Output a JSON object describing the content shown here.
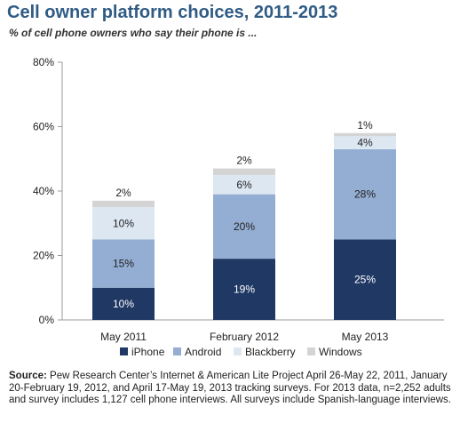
{
  "title": "Cell owner platform choices, 2011-2013",
  "subtitle": "% of cell phone owners who say their phone is ...",
  "source": {
    "label": "Source:",
    "text": "Pew Research Center’s Internet & American Lite Project April 26-May 22, 2011, January 20-February 19, 2012, and April 17-May 19, 2013 tracking surveys. For 2013 data, n=2,252 adults and survey includes 1,127 cell phone interviews. All surveys include Spanish-language interviews."
  },
  "chart_data": {
    "type": "bar",
    "stacked": true,
    "categories": [
      "May 2011",
      "February 2012",
      "May 2013"
    ],
    "series": [
      {
        "name": "iPhone",
        "values": [
          10,
          19,
          25
        ],
        "color": "#1f3864",
        "label_color": "#ffffff"
      },
      {
        "name": "Android",
        "values": [
          15,
          20,
          28
        ],
        "color": "#93aed2",
        "label_color": "#222222"
      },
      {
        "name": "Blackberry",
        "values": [
          10,
          6,
          4
        ],
        "color": "#dde7f2",
        "label_color": "#222222"
      },
      {
        "name": "Windows",
        "values": [
          2,
          2,
          1
        ],
        "color": "#d4d4d4",
        "label_color": "#222222"
      }
    ],
    "yticks": [
      "0%",
      "20%",
      "40%",
      "60%",
      "80%"
    ],
    "ylim": [
      0,
      80
    ],
    "legend_position": "bottom"
  }
}
